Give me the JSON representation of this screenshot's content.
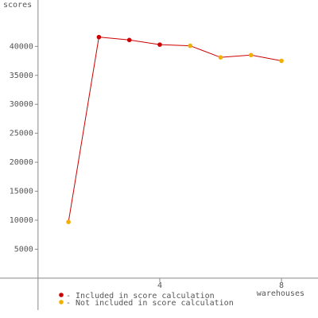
{
  "chart_data": {
    "type": "line",
    "y_label": "scores",
    "x_label": "warehouses",
    "x": [
      1,
      2,
      3,
      4,
      5,
      6,
      7,
      8
    ],
    "values": [
      9700,
      41600,
      41100,
      40300,
      40100,
      38100,
      38500,
      37500
    ],
    "line_color": "#cc0000",
    "point_colors": [
      "#f0b000",
      "#cc0000",
      "#cc0000",
      "#cc0000",
      "#f0b000",
      "#f0b000",
      "#f0b000",
      "#f0b000"
    ],
    "legend": [
      {
        "name": "- Included in score calculation",
        "color": "#cc0000"
      },
      {
        "name": "- Not included in score calculation",
        "color": "#f0b000"
      }
    ],
    "xlim": [
      -1.25,
      9.2
    ],
    "ylim": [
      -5500,
      48000
    ],
    "xticks": [
      4,
      8
    ],
    "yticks": [
      5000,
      10000,
      15000,
      20000,
      25000,
      30000,
      35000,
      40000
    ]
  }
}
